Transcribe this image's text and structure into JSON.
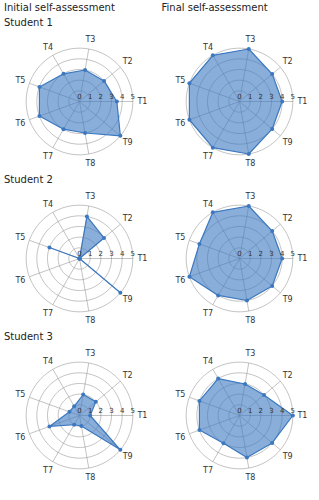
{
  "column_titles": [
    "Initial self-assessment",
    "Final self-assessment"
  ],
  "chart_data": [
    {
      "type": "radar",
      "title": "Student 1",
      "categories": [
        "T1",
        "T2",
        "T3",
        "T4",
        "T5",
        "T6",
        "T7",
        "T8",
        "T9"
      ],
      "values": [
        3.5,
        3,
        3,
        3,
        4,
        4,
        3,
        3,
        5
      ],
      "color": "#3b78c0",
      "marker": "circle",
      "ylim": [
        0,
        5
      ],
      "yticks": [
        0,
        1,
        2,
        3,
        4,
        5
      ],
      "grid": true
    },
    {
      "type": "radar",
      "categories": [
        "T1",
        "T2",
        "T3",
        "T4",
        "T5",
        "T6",
        "T7",
        "T8",
        "T9"
      ],
      "values": [
        4,
        4,
        5,
        5,
        5,
        5,
        5,
        5,
        4
      ],
      "color": "#3b78c0",
      "marker": "circle",
      "ylim": [
        0,
        5
      ],
      "yticks": [
        0,
        1,
        2,
        3,
        4,
        5
      ],
      "grid": true
    },
    {
      "type": "radar",
      "title": "Student 2",
      "categories": [
        "T1",
        "T2",
        "T3",
        "T4",
        "T5",
        "T6",
        "T7",
        "T8",
        "T9"
      ],
      "values": [
        0,
        3,
        4,
        0,
        3,
        0,
        0,
        0,
        5
      ],
      "color": "#3b78c0",
      "marker": "circle",
      "ylim": [
        0,
        5
      ],
      "yticks": [
        0,
        1,
        2,
        3,
        4,
        5
      ],
      "grid": true
    },
    {
      "type": "radar",
      "categories": [
        "T1",
        "T2",
        "T3",
        "T4",
        "T5",
        "T6",
        "T7",
        "T8",
        "T9"
      ],
      "values": [
        4,
        4,
        5,
        5,
        4,
        5,
        4,
        4,
        4
      ],
      "color": "#3b78c0",
      "marker": "circle",
      "ylim": [
        0,
        5
      ],
      "yticks": [
        0,
        1,
        2,
        3,
        4,
        5
      ],
      "grid": true
    },
    {
      "type": "radar",
      "title": "Student 3",
      "categories": [
        "T1",
        "T2",
        "T3",
        "T4",
        "T5",
        "T6",
        "T7",
        "T8",
        "T9"
      ],
      "values": [
        1,
        2,
        2,
        1,
        1,
        3,
        1,
        1,
        5
      ],
      "color": "#3b78c0",
      "marker": "circle",
      "ylim": [
        0,
        5
      ],
      "yticks": [
        0,
        1,
        2,
        3,
        4,
        5
      ],
      "grid": true
    },
    {
      "type": "radar",
      "categories": [
        "T1",
        "T2",
        "T3",
        "T4",
        "T5",
        "T6",
        "T7",
        "T8",
        "T9"
      ],
      "values": [
        5,
        3,
        3,
        4,
        4,
        4,
        3,
        4,
        4
      ],
      "color": "#3b78c0",
      "marker": "circle",
      "ylim": [
        0,
        5
      ],
      "yticks": [
        0,
        1,
        2,
        3,
        4,
        5
      ],
      "grid": true
    }
  ]
}
